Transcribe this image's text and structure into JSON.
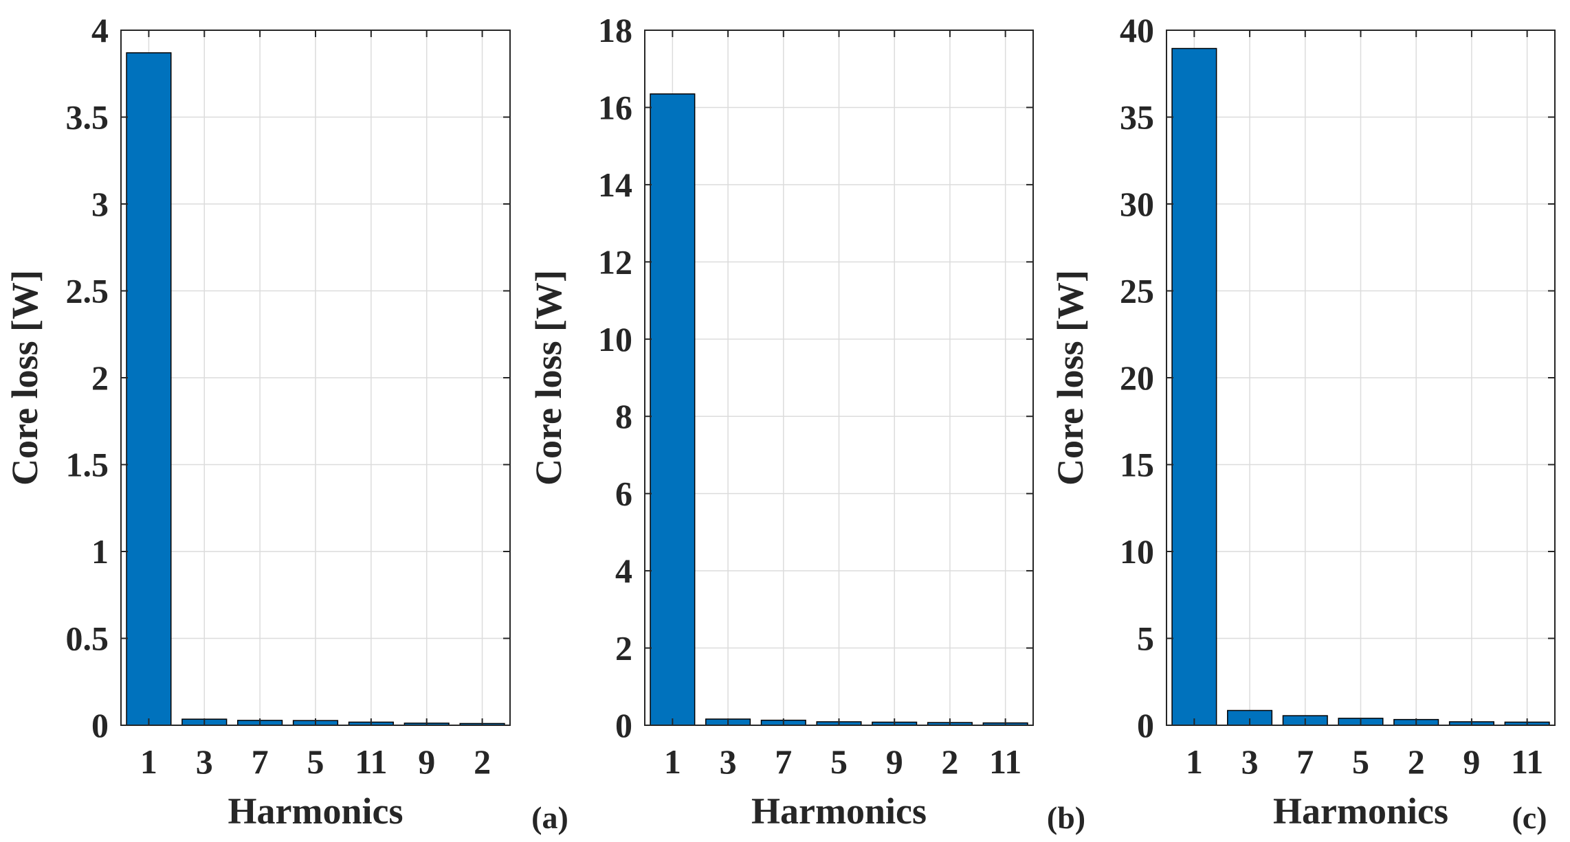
{
  "figure": {
    "panels": [
      "a",
      "b",
      "c"
    ]
  },
  "chart_data": [
    {
      "type": "bar",
      "panel_label": "(a)",
      "xlabel": "Harmonics",
      "ylabel": "Core loss [W]",
      "categories": [
        "1",
        "3",
        "7",
        "5",
        "11",
        "9",
        "2"
      ],
      "values": [
        3.87,
        0.035,
        0.028,
        0.027,
        0.018,
        0.012,
        0.01
      ],
      "ylim": [
        0,
        4
      ],
      "yticks": [
        0,
        0.5,
        1,
        1.5,
        2,
        2.5,
        3,
        3.5,
        4
      ],
      "ytick_labels": [
        "0",
        "0.5",
        "1",
        "1.5",
        "2",
        "2.5",
        "3",
        "3.5",
        "4"
      ],
      "grid": true,
      "bar_color": "#0072bd"
    },
    {
      "type": "bar",
      "panel_label": "(b)",
      "xlabel": "Harmonics",
      "ylabel": "Core loss [W]",
      "categories": [
        "1",
        "3",
        "7",
        "5",
        "9",
        "2",
        "11"
      ],
      "values": [
        16.35,
        0.16,
        0.13,
        0.09,
        0.08,
        0.07,
        0.06
      ],
      "ylim": [
        0,
        18
      ],
      "yticks": [
        0,
        2,
        4,
        6,
        8,
        10,
        12,
        14,
        16,
        18
      ],
      "ytick_labels": [
        "0",
        "2",
        "4",
        "6",
        "8",
        "10",
        "12",
        "14",
        "16",
        "18"
      ],
      "grid": true,
      "bar_color": "#0072bd"
    },
    {
      "type": "bar",
      "panel_label": "(c)",
      "xlabel": "Harmonics",
      "ylabel": "Core loss [W]",
      "categories": [
        "1",
        "3",
        "7",
        "5",
        "2",
        "9",
        "11"
      ],
      "values": [
        38.95,
        0.85,
        0.55,
        0.4,
        0.33,
        0.2,
        0.18
      ],
      "ylim": [
        0,
        40
      ],
      "yticks": [
        0,
        5,
        10,
        15,
        20,
        25,
        30,
        35,
        40
      ],
      "ytick_labels": [
        "0",
        "5",
        "10",
        "15",
        "20",
        "25",
        "30",
        "35",
        "40"
      ],
      "grid": true,
      "bar_color": "#0072bd"
    }
  ]
}
